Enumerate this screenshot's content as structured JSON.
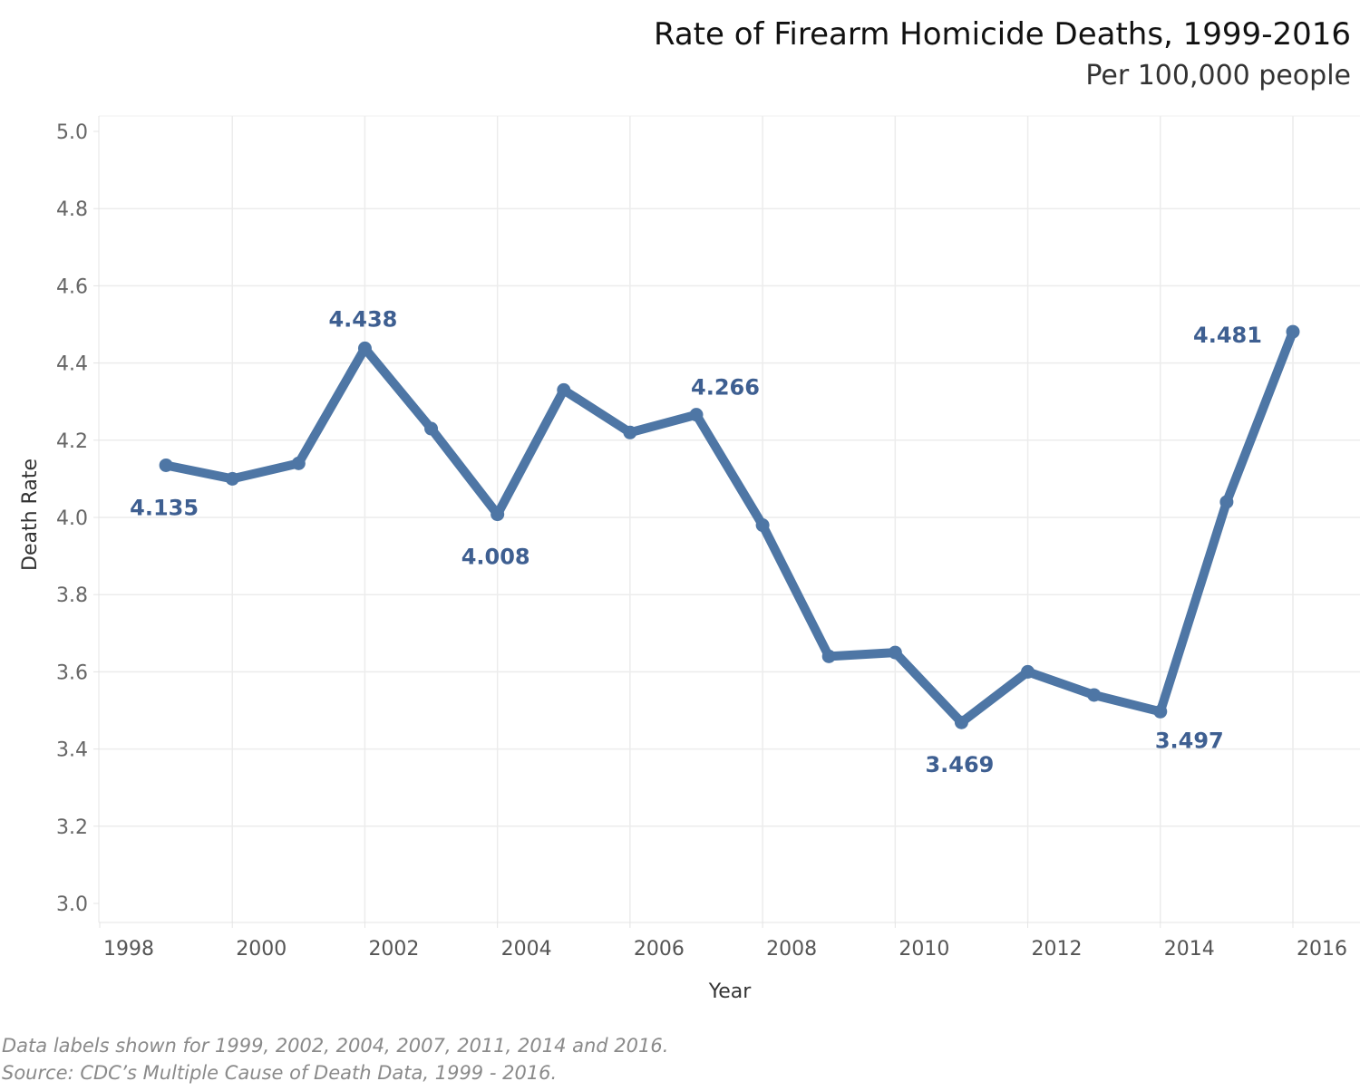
{
  "header": {
    "title": "Rate of Firearm Homicide Deaths, 1999-2016",
    "subtitle": "Per 100,000 people"
  },
  "footnotes": {
    "labels_note": "Data labels shown for 1999, 2002, 2004, 2007, 2011, 2014 and 2016.",
    "source": "Source: CDC’s Multiple Cause of Death Data, 1999 - 2016."
  },
  "colors": {
    "line": "#4e76a5",
    "label": "#3e5f91",
    "grid": "#ececec"
  },
  "chart_data": {
    "type": "line",
    "title": "Rate of Firearm Homicide Deaths, 1999-2016",
    "subtitle": "Per 100,000 people",
    "xlabel": "Year",
    "ylabel": "Death Rate",
    "xlim": [
      1998,
      2016
    ],
    "ylim": [
      3.0,
      5.0
    ],
    "x_ticks": [
      1998,
      2000,
      2002,
      2004,
      2006,
      2008,
      2010,
      2012,
      2014,
      2016
    ],
    "y_ticks": [
      "3.0",
      "3.2",
      "3.4",
      "3.6",
      "3.8",
      "4.0",
      "4.2",
      "4.4",
      "4.6",
      "4.8",
      "5.0"
    ],
    "grid": true,
    "series": [
      {
        "x": [
          1999,
          2000,
          2001,
          2002,
          2003,
          2004,
          2005,
          2006,
          2007,
          2008,
          2009,
          2010,
          2011,
          2012,
          2013,
          2014,
          2015,
          2016
        ],
        "values": [
          4.135,
          4.1,
          4.14,
          4.438,
          4.23,
          4.008,
          4.33,
          4.22,
          4.266,
          3.98,
          3.64,
          3.65,
          3.469,
          3.6,
          3.54,
          3.497,
          4.04,
          4.481
        ]
      }
    ],
    "data_labels": [
      {
        "x": 1999,
        "text": "4.135",
        "position": "below"
      },
      {
        "x": 2002,
        "text": "4.438",
        "position": "above"
      },
      {
        "x": 2004,
        "text": "4.008",
        "position": "below"
      },
      {
        "x": 2007,
        "text": "4.266",
        "position": "above-right"
      },
      {
        "x": 2011,
        "text": "3.469",
        "position": "below"
      },
      {
        "x": 2014,
        "text": "3.497",
        "position": "below-right"
      },
      {
        "x": 2016,
        "text": "4.481",
        "position": "left"
      }
    ]
  }
}
